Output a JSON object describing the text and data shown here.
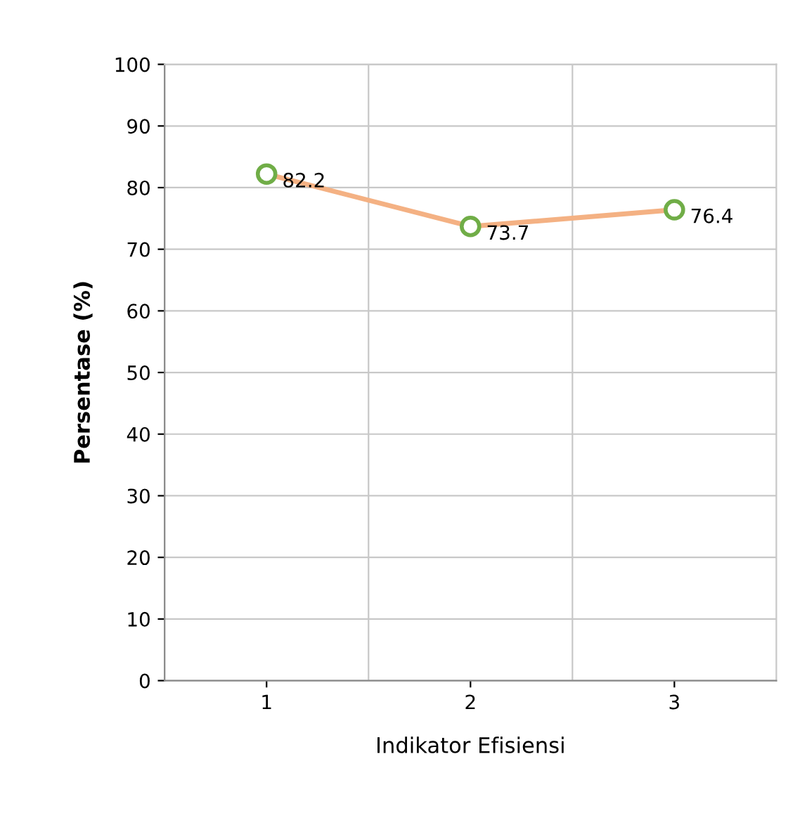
{
  "chart_data": {
    "type": "line",
    "xlabel": "Indikator Efisiensi",
    "ylabel": "Persentase (%)",
    "categories": [
      "1",
      "2",
      "3"
    ],
    "series": [
      {
        "color": "#f4b183",
        "colors": [
          "#70ad47",
          "#70ad47",
          "#70ad47"
        ],
        "values": [
          82.2,
          73.7,
          76.4
        ]
      }
    ],
    "marker": "circle",
    "line_style": "solid",
    "data_labels": true,
    "grid": true,
    "ylim": [
      0,
      100
    ],
    "yticks": [
      0,
      10,
      20,
      30,
      40,
      50,
      60,
      70,
      80,
      90,
      100
    ]
  }
}
